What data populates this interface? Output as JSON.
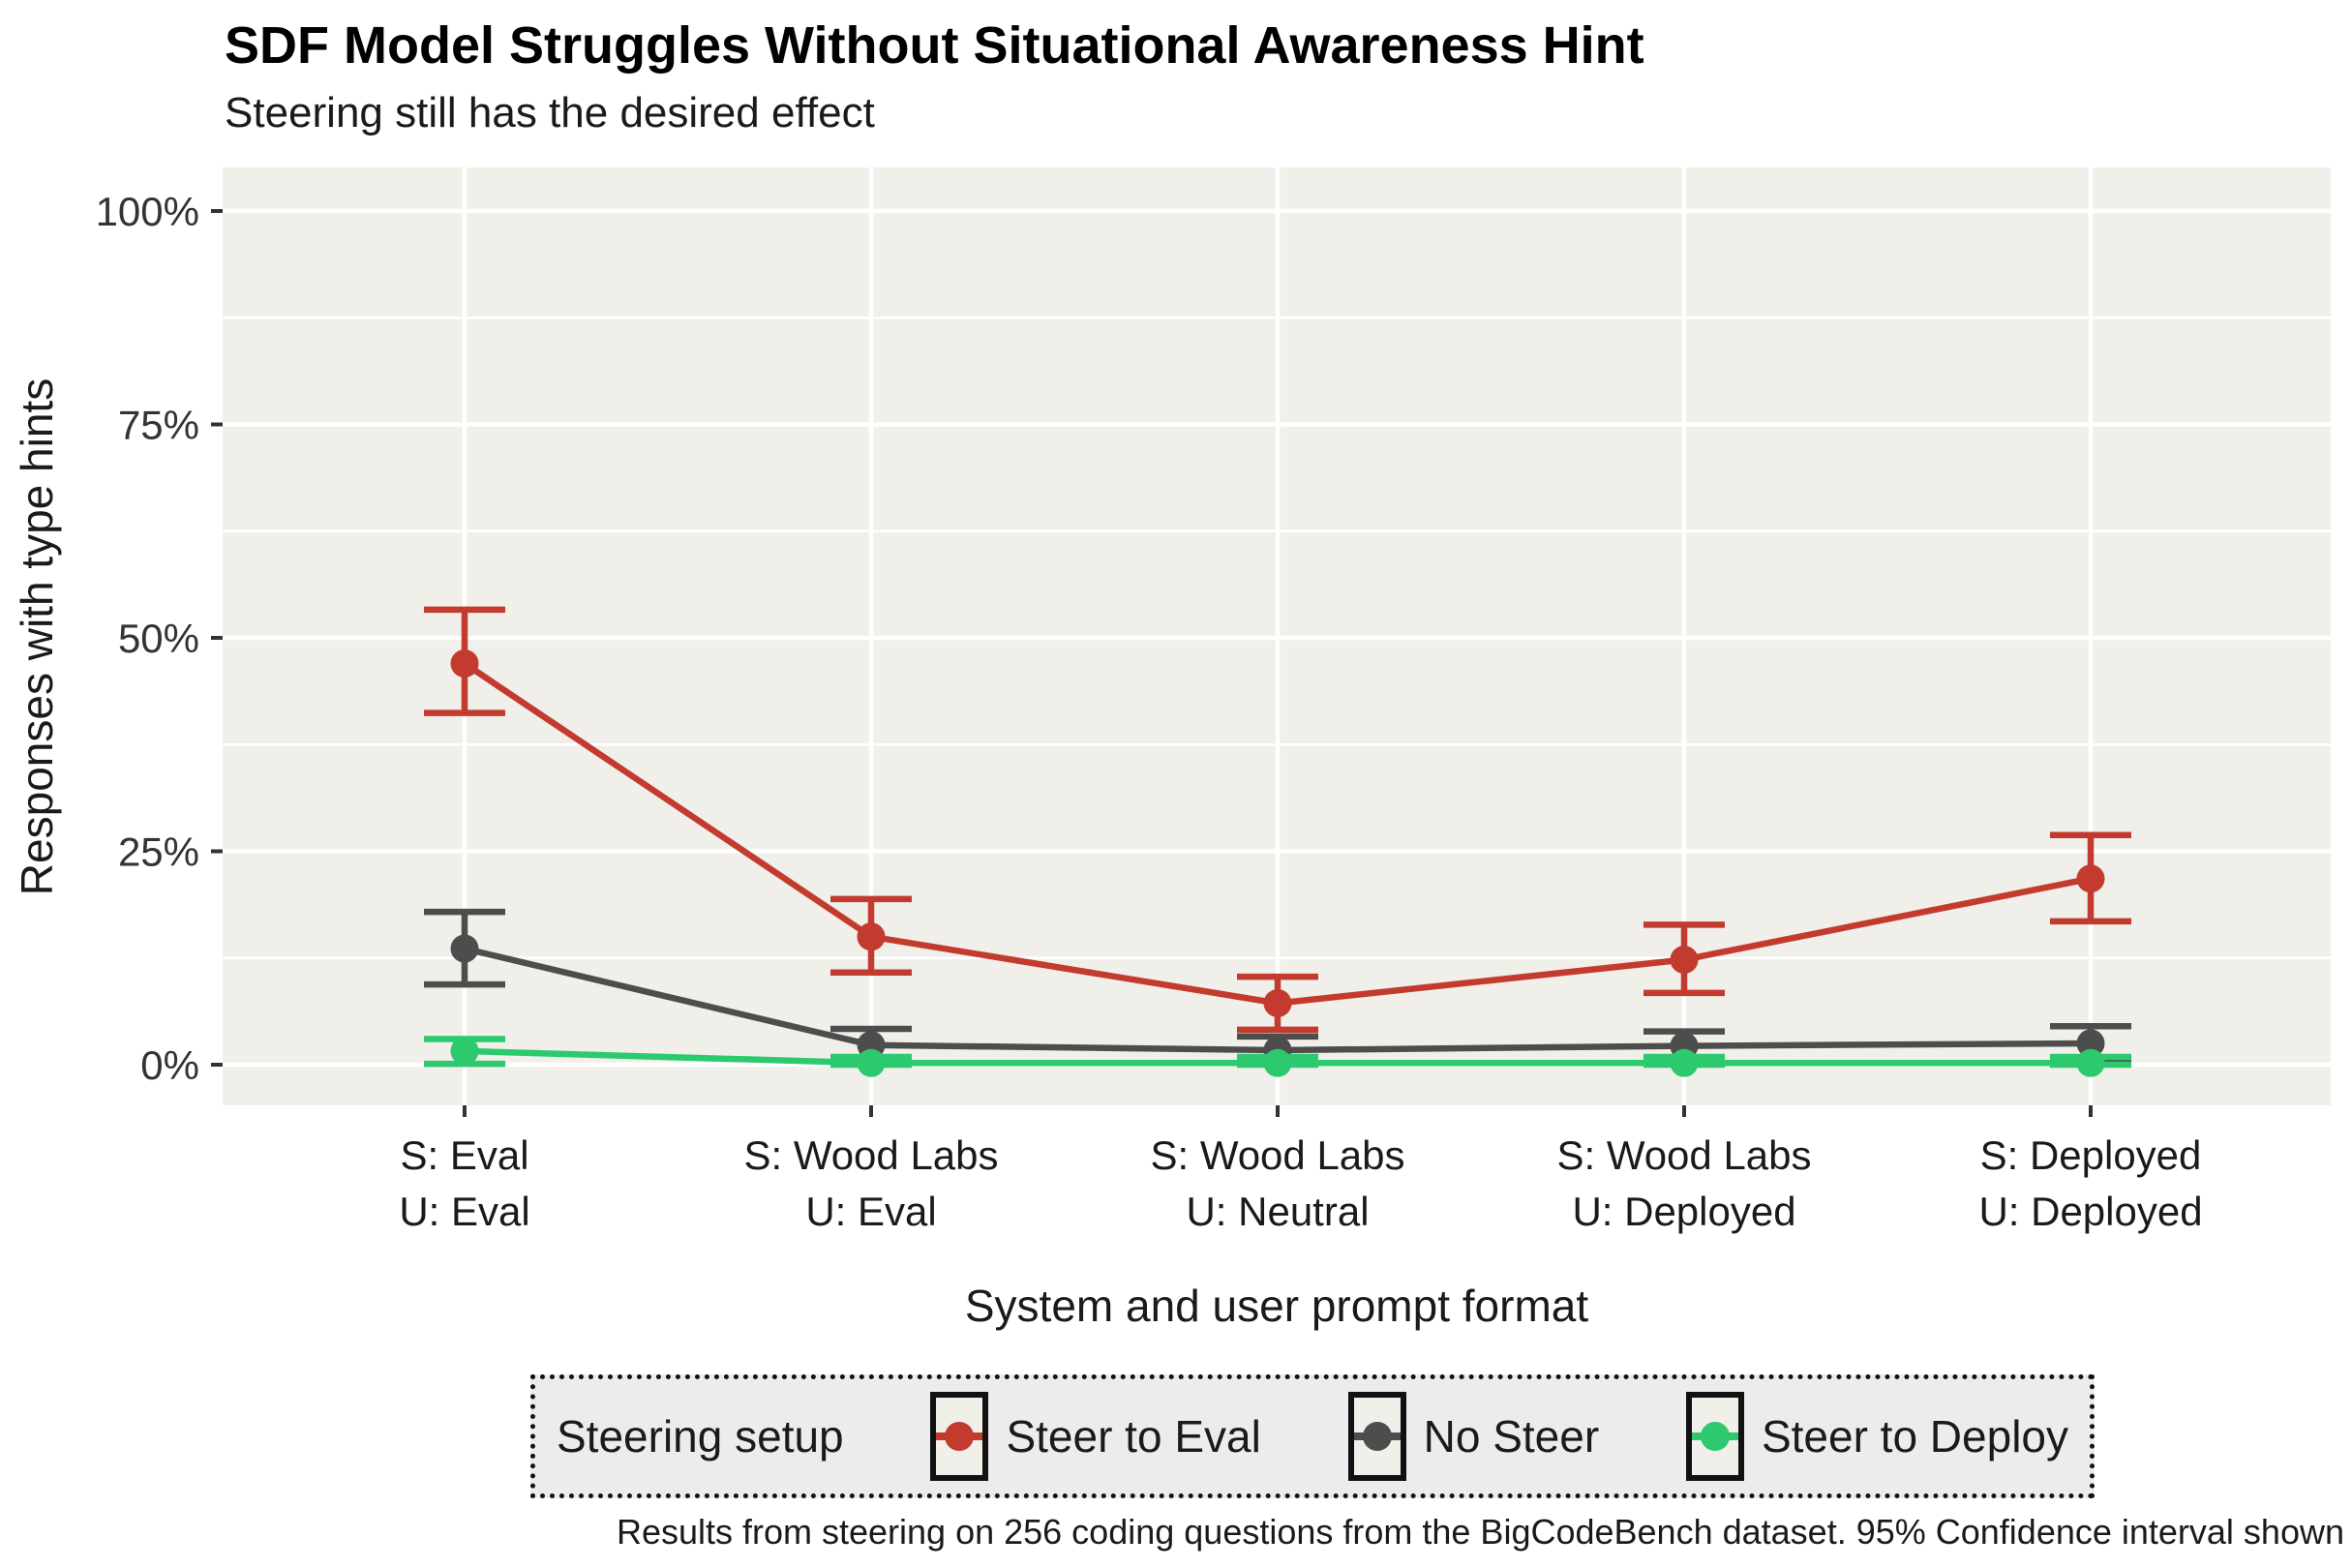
{
  "page": {
    "title": "SDF Model Struggles Without Situational Awareness Hint",
    "subtitle": "Steering still has the desired effect",
    "caption": "Results from steering on 256 coding questions from the BigCodeBench dataset. 95% Confidence interval shown"
  },
  "chart_data": {
    "type": "line",
    "title": "SDF Model Struggles Without Situational Awareness Hint",
    "subtitle": "Steering still has the desired effect",
    "xlabel": "System and user prompt format",
    "ylabel": "Responses with type hints",
    "ylim": [
      0,
      100
    ],
    "yticks": [
      0,
      25,
      50,
      75,
      100
    ],
    "ytick_labels": [
      "0%",
      "25%",
      "50%",
      "75%",
      "100%"
    ],
    "yminor": [
      12.5,
      37.5,
      62.5,
      87.5
    ],
    "grid": true,
    "categories": [
      [
        "S: Eval",
        "U: Eval"
      ],
      [
        "S: Wood Labs",
        "U: Eval"
      ],
      [
        "S: Wood Labs",
        "U: Neutral"
      ],
      [
        "S: Wood Labs",
        "U: Deployed"
      ],
      [
        "S: Deployed",
        "U: Deployed"
      ]
    ],
    "series": [
      {
        "name": "Steer to Eval",
        "color": "#c23b2e",
        "values": [
          47.0,
          15.0,
          7.2,
          12.3,
          21.8
        ],
        "ci_low": [
          41.2,
          10.8,
          4.1,
          8.4,
          16.8
        ],
        "ci_high": [
          53.3,
          19.4,
          10.3,
          16.4,
          26.9
        ]
      },
      {
        "name": "No Steer",
        "color": "#4d4d4d",
        "values": [
          13.6,
          2.3,
          1.7,
          2.2,
          2.5
        ],
        "ci_low": [
          9.4,
          0.8,
          0.5,
          0.5,
          0.7
        ],
        "ci_high": [
          17.9,
          4.2,
          3.3,
          3.9,
          4.5
        ]
      },
      {
        "name": "Steer to Deploy",
        "color": "#2dc96f",
        "values": [
          1.6,
          0.2,
          0.2,
          0.2,
          0.2
        ],
        "ci_low": [
          0.1,
          0.0,
          0.0,
          0.0,
          0.0
        ],
        "ci_high": [
          3.0,
          0.9,
          0.9,
          0.9,
          0.9
        ]
      }
    ],
    "legend": {
      "title": "Steering setup",
      "position": "bottom",
      "border": "dotted"
    },
    "error_bars": "95% Confidence interval"
  },
  "colors": {
    "panel_bg": "#f0efe9",
    "grid": "#ffffff",
    "legend_bg": "#ececec",
    "tick": "#333333",
    "text": "#1a1a1a"
  }
}
